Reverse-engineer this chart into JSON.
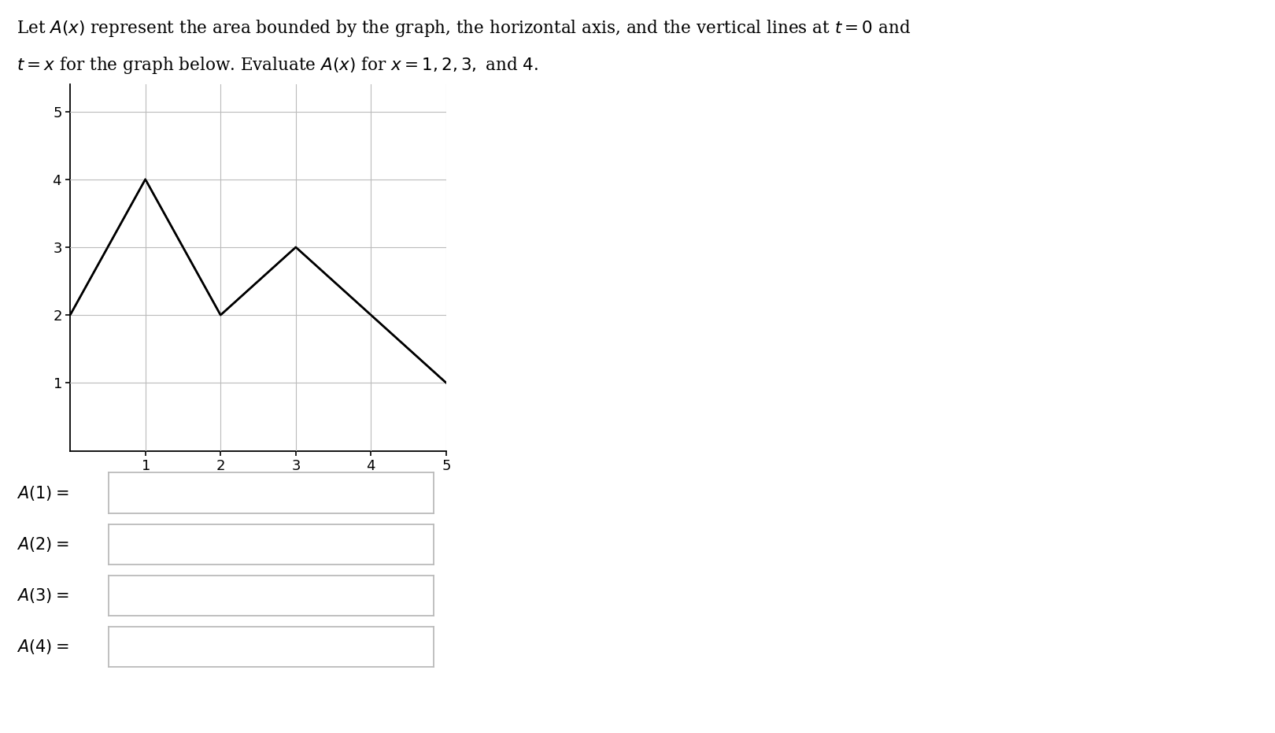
{
  "graph_x": [
    0,
    1,
    2,
    3,
    4,
    5
  ],
  "graph_y": [
    2,
    4,
    2,
    3,
    2,
    1
  ],
  "xlim": [
    0,
    5
  ],
  "ylim": [
    0,
    5.4
  ],
  "xticks": [
    1,
    2,
    3,
    4,
    5
  ],
  "yticks": [
    1,
    2,
    3,
    4,
    5
  ],
  "line_color": "#000000",
  "line_width": 1.8,
  "grid_color": "#bbbbbb",
  "background_color": "#ffffff",
  "box_color": "#bbbbbb",
  "font_size_title": 15.5,
  "font_size_tick": 13,
  "font_size_label": 15
}
